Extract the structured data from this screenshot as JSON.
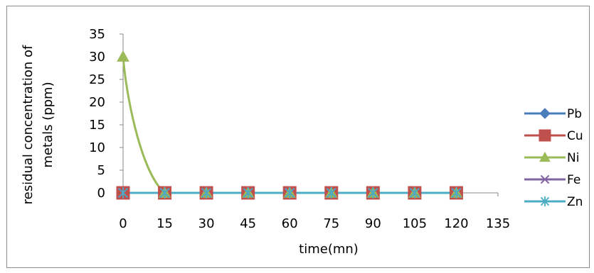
{
  "chart_data": {
    "type": "line",
    "title": "",
    "xlabel": "time(mn)",
    "ylabel_lines": [
      "residual concentration of",
      "metals (ppm)"
    ],
    "x_ticks": [
      "0",
      "15",
      "30",
      "45",
      "60",
      "75",
      "90",
      "105",
      "120",
      "135"
    ],
    "y_ticks": [
      "0",
      "5",
      "10",
      "15",
      "20",
      "25",
      "30",
      "35"
    ],
    "ylim": [
      0,
      35
    ],
    "x": [
      0,
      15,
      30,
      45,
      60,
      75,
      90,
      105,
      120
    ],
    "legend_position": "right",
    "series": [
      {
        "name": "Pb",
        "color": "#4a7ebb",
        "marker": "diamond",
        "values": [
          0,
          0,
          0,
          0,
          0,
          0,
          0,
          0,
          0
        ]
      },
      {
        "name": "Cu",
        "color": "#c0504d",
        "marker": "square",
        "values": [
          0,
          0,
          0,
          0,
          0,
          0,
          0,
          0,
          0
        ]
      },
      {
        "name": "Ni",
        "color": "#9bbb59",
        "marker": "triangle",
        "smooth": true,
        "values": [
          30,
          0,
          0,
          0,
          0,
          0,
          0,
          0,
          0
        ]
      },
      {
        "name": "Fe",
        "color": "#8064a2",
        "marker": "x",
        "values": [
          0,
          0,
          0,
          0,
          0,
          0,
          0,
          0,
          0
        ]
      },
      {
        "name": "Zn",
        "color": "#4bacc6",
        "marker": "star",
        "values": [
          0,
          0,
          0,
          0,
          0,
          0,
          0,
          0,
          0
        ]
      }
    ]
  }
}
